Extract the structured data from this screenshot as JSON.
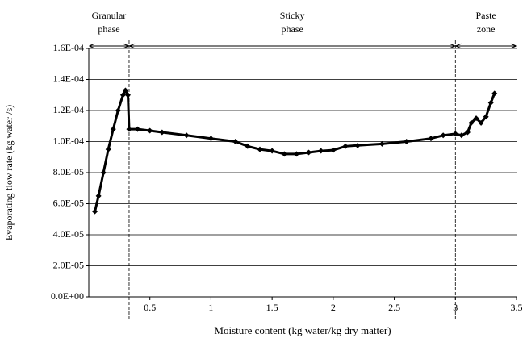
{
  "chart_data": {
    "type": "line",
    "x_label": "Moisture content (kg water/kg dry matter)",
    "y_label": "Evaporating flow rate (kg water /s)",
    "x": [
      0.05,
      0.08,
      0.12,
      0.16,
      0.2,
      0.24,
      0.28,
      0.3,
      0.32,
      0.33,
      0.4,
      0.5,
      0.6,
      0.8,
      1.0,
      1.2,
      1.3,
      1.4,
      1.5,
      1.6,
      1.7,
      1.8,
      1.9,
      2.0,
      2.1,
      2.2,
      2.4,
      2.6,
      2.8,
      2.9,
      3.0,
      3.05,
      3.1,
      3.13,
      3.17,
      3.21,
      3.25,
      3.29,
      3.32
    ],
    "values": [
      5.5e-05,
      6.5e-05,
      8e-05,
      9.5e-05,
      0.000108,
      0.00012,
      0.00013,
      0.000133,
      0.00013,
      0.000108,
      0.000108,
      0.000107,
      0.000106,
      0.000104,
      0.000102,
      0.0001,
      9.7e-05,
      9.5e-05,
      9.4e-05,
      9.2e-05,
      9.2e-05,
      9.3e-05,
      9.4e-05,
      9.45e-05,
      9.7e-05,
      9.75e-05,
      9.85e-05,
      0.0001,
      0.000102,
      0.000104,
      0.000105,
      0.000104,
      0.000106,
      0.000112,
      0.000115,
      0.000112,
      0.000116,
      0.000125,
      0.000131
    ],
    "color": "#000000",
    "xlim": [
      0,
      3.5
    ],
    "xticks": [
      0.5,
      1,
      1.5,
      2,
      2.5,
      3,
      3.5
    ],
    "ylim": [
      0,
      0.00016
    ],
    "yticks": [
      {
        "value": 0,
        "label": "0.0E+00"
      },
      {
        "value": 2e-05,
        "label": "2.0E-05"
      },
      {
        "value": 4e-05,
        "label": "4.0E-05"
      },
      {
        "value": 6e-05,
        "label": "6.0E-05"
      },
      {
        "value": 8e-05,
        "label": "8.0E-05"
      },
      {
        "value": 0.0001,
        "label": "1.0E-04"
      },
      {
        "value": 0.00012,
        "label": "1.2E-04"
      },
      {
        "value": 0.00014,
        "label": "1.4E-04"
      },
      {
        "value": 0.00016,
        "label": "1.6E-04"
      }
    ],
    "grid": true,
    "regions": [
      {
        "label": "Granular phase",
        "from": 0,
        "to": 0.33
      },
      {
        "label": "Sticky phase",
        "from": 0.33,
        "to": 3.0
      },
      {
        "label": "Paste zone",
        "from": 3.0,
        "to": 3.5
      }
    ]
  }
}
